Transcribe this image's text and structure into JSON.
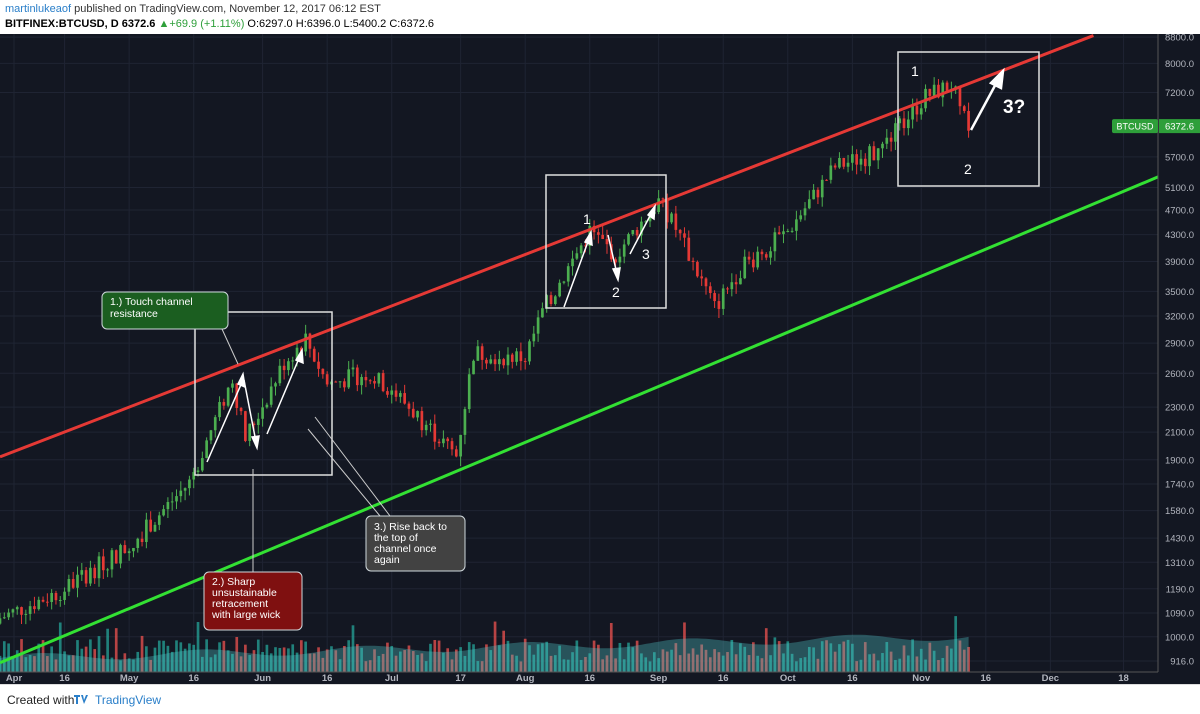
{
  "header": {
    "user": "martinlukeaof",
    "published": "published on TradingView.com, November 12, 2017 06:12 EST",
    "symbol": "BITFINEX:BTCUSD, D",
    "last": "6372.6",
    "change": "+69.9 (+1.11%)",
    "ohlc": {
      "o": "6297.0",
      "h": "6396.0",
      "l": "5400.2",
      "c": "6372.6"
    }
  },
  "footer": {
    "created_with": "Created with",
    "brand": "TradingView"
  },
  "colors": {
    "background": "#131722",
    "up": "#4caf50",
    "down": "#e53935",
    "resistance": "#e53935",
    "support": "#33e133",
    "volume_up": "#26a69a",
    "volume_down": "#ef5350"
  },
  "chart_data": {
    "type": "candlestick",
    "symbol": "BTCUSD",
    "timeframe": "D",
    "y_scale": "log",
    "y_ticks": [
      "8800.0",
      "8000.0",
      "7200.0",
      "6372.6",
      "5700.0",
      "5100.0",
      "4700.0",
      "4300.0",
      "3900.0",
      "3500.0",
      "3200.0",
      "2900.0",
      "2600.0",
      "2300.0",
      "2100.0",
      "1900.0",
      "1740.0",
      "1580.0",
      "1430.0",
      "1310.0",
      "1190.0",
      "1090.0",
      "1000.0",
      "916.0"
    ],
    "x_ticks": [
      "Apr",
      "16",
      "May",
      "16",
      "Jun",
      "16",
      "Jul",
      "17",
      "Aug",
      "16",
      "Sep",
      "16",
      "Oct",
      "16",
      "Nov",
      "16",
      "Dec",
      "18"
    ],
    "x_range": [
      "2017-04-01",
      "2017-12-26"
    ],
    "ylim": [
      880,
      8900
    ],
    "price_label": "BTCUSD",
    "price_value": "6372.6",
    "key_prices": [
      {
        "date": "2017-04-01",
        "close": 1070
      },
      {
        "date": "2017-04-15",
        "close": 1180
      },
      {
        "date": "2017-05-01",
        "close": 1390
      },
      {
        "date": "2017-05-15",
        "close": 1750
      },
      {
        "date": "2017-05-25",
        "close": 2550
      },
      {
        "date": "2017-05-28",
        "close": 2050
      },
      {
        "date": "2017-06-06",
        "close": 2700
      },
      {
        "date": "2017-06-11",
        "close": 2950
      },
      {
        "date": "2017-06-16",
        "close": 2500
      },
      {
        "date": "2017-06-25",
        "close": 2600
      },
      {
        "date": "2017-07-01",
        "close": 2450
      },
      {
        "date": "2017-07-16",
        "close": 1930
      },
      {
        "date": "2017-07-20",
        "close": 2800
      },
      {
        "date": "2017-08-01",
        "close": 2750
      },
      {
        "date": "2017-08-05",
        "close": 3250
      },
      {
        "date": "2017-08-16",
        "close": 4350
      },
      {
        "date": "2017-08-22",
        "close": 4000
      },
      {
        "date": "2017-09-01",
        "close": 4850
      },
      {
        "date": "2017-09-05",
        "close": 4400
      },
      {
        "date": "2017-09-14",
        "close": 3300
      },
      {
        "date": "2017-09-20",
        "close": 3800
      },
      {
        "date": "2017-10-01",
        "close": 4350
      },
      {
        "date": "2017-10-12",
        "close": 5500
      },
      {
        "date": "2017-10-22",
        "close": 5800
      },
      {
        "date": "2017-11-02",
        "close": 7100
      },
      {
        "date": "2017-11-08",
        "close": 7400
      },
      {
        "date": "2017-11-12",
        "close": 6372.6
      }
    ],
    "lines": [
      {
        "name": "resistance",
        "color": "#e53935",
        "from": {
          "date": "2017-04-01",
          "price": 1920
        },
        "to": {
          "date": "2017-12-11",
          "price": 8850
        }
      },
      {
        "name": "support",
        "color": "#33e133",
        "from": {
          "date": "2017-04-01",
          "price": 910
        },
        "to": {
          "date": "2017-12-26",
          "price": 5300
        }
      }
    ],
    "annotations": {
      "callout1": "1.) Touch channel resistance",
      "callout2": "2.) Sharp unsustainable retracement with large wick",
      "callout3": "3.) Rise back to the top of channel once again",
      "aug_labels": [
        "1",
        "2",
        "3"
      ],
      "nov_labels": [
        "1",
        "2",
        "3?"
      ]
    }
  }
}
